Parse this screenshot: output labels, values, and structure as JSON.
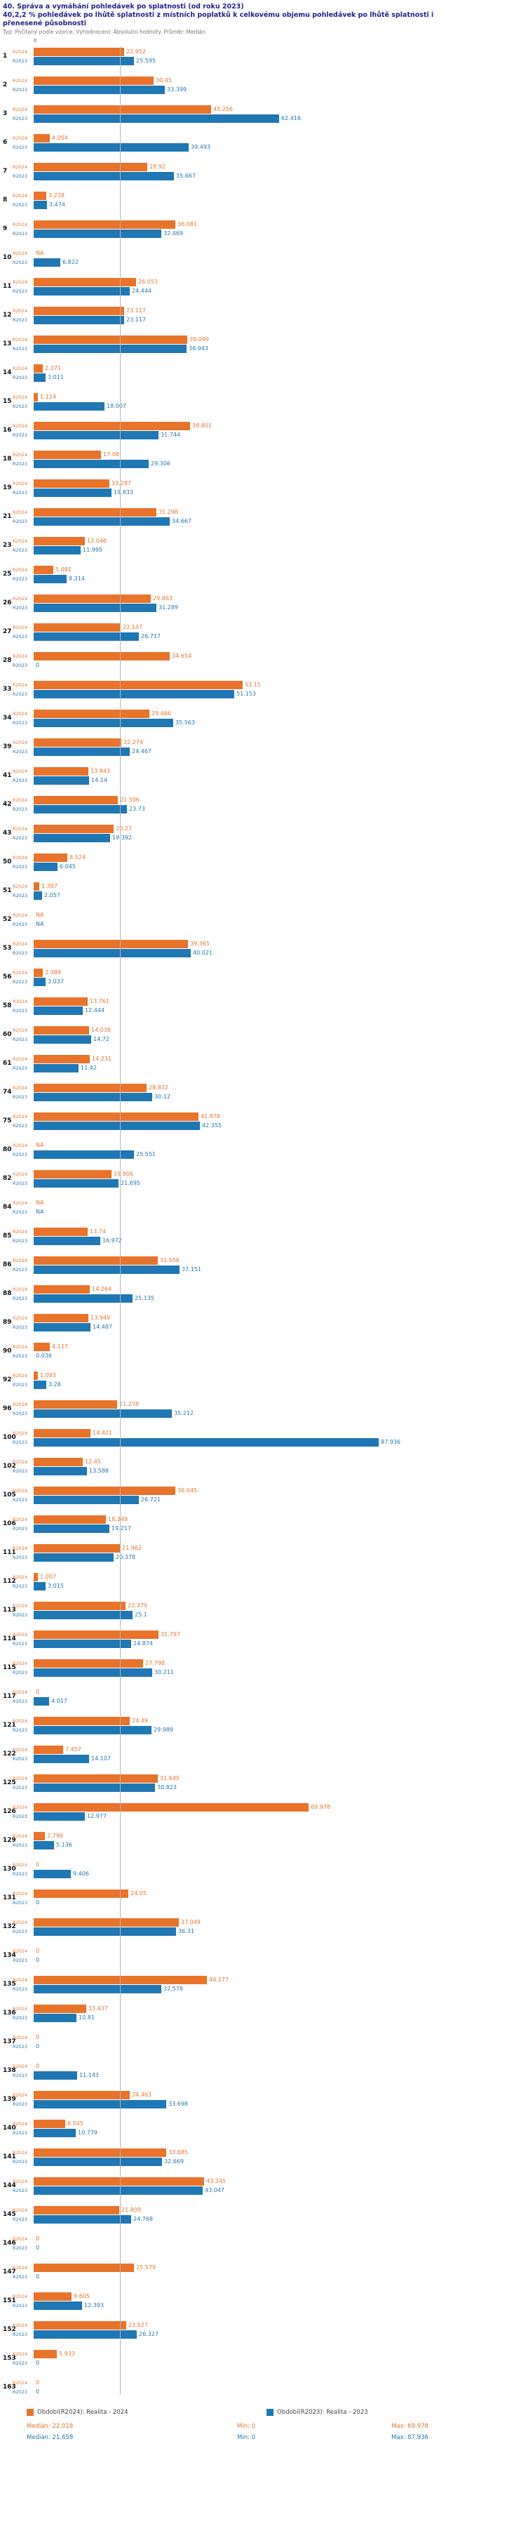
{
  "header": {
    "title": "40. Správa a vymáhání pohledávek po splatnosti (od roku 2023)",
    "subtitle": "40,2,2 % pohledávek po lhůtě splatnosti z místních poplatků k celkovému objemu pohledávek po lhůtě splatnosti i přenesené působnosti",
    "note": "Typ: Počítaný podle vzorce. Vyhodnocení: Absolutní hodnoty. Průměr: Medián"
  },
  "colors": {
    "series_2024": "#e8732a",
    "series_2023": "#1f77b4",
    "median_line": "#b5b5b5",
    "title_text": "#23238c"
  },
  "chart_data": {
    "type": "bar",
    "orientation": "horizontal",
    "title": "40. Správa a vymáhání pohledávek po splatnosti (od roku 2023)",
    "xlabel": "",
    "ylabel": "",
    "x_axis": {
      "zero_label": "0",
      "min": 0,
      "max": 90
    },
    "median_reference_values": [
      22.018,
      21.658
    ],
    "tick_labels": [
      "R2024",
      "R2023"
    ],
    "series_meta": [
      {
        "name": "Období(R2024): Realita - 2024",
        "color": "#e8732a",
        "median": "22.018",
        "min": "0",
        "max": "69.978"
      },
      {
        "name": "Období(R2023): Realita - 2023",
        "color": "#1f77b4",
        "median": "21.658",
        "min": "0",
        "max": "87.936"
      }
    ],
    "rows": [
      {
        "id": "1",
        "values": [
          "22.952",
          "25.595"
        ]
      },
      {
        "id": "2",
        "values": [
          "30.45",
          "33.399"
        ]
      },
      {
        "id": "3",
        "values": [
          "45.256",
          "62.416"
        ]
      },
      {
        "id": "6",
        "values": [
          "4.054",
          "39.493"
        ]
      },
      {
        "id": "7",
        "values": [
          "28.92",
          "35.667"
        ]
      },
      {
        "id": "8",
        "values": [
          "3.238",
          "3.474"
        ]
      },
      {
        "id": "9",
        "values": [
          "36.081",
          "32.469"
        ]
      },
      {
        "id": "10",
        "values": [
          "NA",
          "6.822"
        ]
      },
      {
        "id": "11",
        "values": [
          "26.053",
          "24.444"
        ]
      },
      {
        "id": "12",
        "values": [
          "23.117",
          "23.117"
        ]
      },
      {
        "id": "13",
        "values": [
          "39.099",
          "38.943"
        ]
      },
      {
        "id": "14",
        "values": [
          "2.371",
          "3.011"
        ]
      },
      {
        "id": "15",
        "values": [
          "1.124",
          "18.007"
        ]
      },
      {
        "id": "16",
        "values": [
          "39.801",
          "31.744"
        ]
      },
      {
        "id": "18",
        "values": [
          "17.08",
          "29.306"
        ]
      },
      {
        "id": "19",
        "values": [
          "19.287",
          "19.833"
        ]
      },
      {
        "id": "21",
        "values": [
          "31.298",
          "34.667"
        ]
      },
      {
        "id": "23",
        "values": [
          "13.046",
          "11.995"
        ]
      },
      {
        "id": "25",
        "values": [
          "5.081",
          "8.314"
        ]
      },
      {
        "id": "26",
        "values": [
          "29.863",
          "31.289"
        ]
      },
      {
        "id": "27",
        "values": [
          "22.147",
          "26.717"
        ]
      },
      {
        "id": "28",
        "values": [
          "34.654",
          "0"
        ]
      },
      {
        "id": "33",
        "values": [
          "53.15",
          "51.153"
        ]
      },
      {
        "id": "34",
        "values": [
          "29.466",
          "35.563"
        ]
      },
      {
        "id": "39",
        "values": [
          "22.274",
          "24.467"
        ]
      },
      {
        "id": "41",
        "values": [
          "13.843",
          "14.14"
        ]
      },
      {
        "id": "42",
        "values": [
          "21.506",
          "23.73"
        ]
      },
      {
        "id": "43",
        "values": [
          "20.27",
          "19.392"
        ]
      },
      {
        "id": "50",
        "values": [
          "8.524",
          "6.045"
        ]
      },
      {
        "id": "51",
        "values": [
          "1.397",
          "2.057"
        ]
      },
      {
        "id": "52",
        "values": [
          "NA",
          "NA"
        ]
      },
      {
        "id": "53",
        "values": [
          "39.365",
          "40.021"
        ]
      },
      {
        "id": "56",
        "values": [
          "2.389",
          "3.037"
        ]
      },
      {
        "id": "58",
        "values": [
          "13.761",
          "12.444"
        ]
      },
      {
        "id": "60",
        "values": [
          "14.038",
          "14.72"
        ]
      },
      {
        "id": "61",
        "values": [
          "14.231",
          "11.42"
        ]
      },
      {
        "id": "74",
        "values": [
          "28.832",
          "30.12"
        ]
      },
      {
        "id": "75",
        "values": [
          "41.879",
          "42.355"
        ]
      },
      {
        "id": "80",
        "values": [
          "NA",
          "25.551"
        ]
      },
      {
        "id": "82",
        "values": [
          "19.906",
          "21.695"
        ]
      },
      {
        "id": "84",
        "values": [
          "NA",
          "NA"
        ]
      },
      {
        "id": "85",
        "values": [
          "13.74",
          "16.972"
        ]
      },
      {
        "id": "86",
        "values": [
          "31.556",
          "37.151"
        ]
      },
      {
        "id": "88",
        "values": [
          "14.264",
          "25.135"
        ]
      },
      {
        "id": "89",
        "values": [
          "13.949",
          "14.487"
        ]
      },
      {
        "id": "90",
        "values": [
          "4.117",
          "0.036"
        ]
      },
      {
        "id": "92",
        "values": [
          "1.093",
          "3.28"
        ]
      },
      {
        "id": "96",
        "values": [
          "21.278",
          "35.212"
        ]
      },
      {
        "id": "100",
        "values": [
          "14.421",
          "87.936"
        ]
      },
      {
        "id": "102",
        "values": [
          "12.45",
          "13.588"
        ]
      },
      {
        "id": "105",
        "values": [
          "36.045",
          "26.721"
        ]
      },
      {
        "id": "106",
        "values": [
          "18.349",
          "19.217"
        ]
      },
      {
        "id": "111",
        "values": [
          "21.962",
          "20.378"
        ]
      },
      {
        "id": "112",
        "values": [
          "1.007",
          "3.015"
        ]
      },
      {
        "id": "113",
        "values": [
          "23.379",
          "25.1"
        ]
      },
      {
        "id": "114",
        "values": [
          "31.797",
          "24.874"
        ]
      },
      {
        "id": "115",
        "values": [
          "27.798",
          "30.211"
        ]
      },
      {
        "id": "117",
        "values": [
          "0",
          "4.017"
        ]
      },
      {
        "id": "121",
        "values": [
          "24.49",
          "29.989"
        ]
      },
      {
        "id": "122",
        "values": [
          "7.457",
          "14.107"
        ]
      },
      {
        "id": "125",
        "values": [
          "31.645",
          "30.823"
        ]
      },
      {
        "id": "126",
        "values": [
          "69.978",
          "12.977"
        ]
      },
      {
        "id": "129",
        "values": [
          "2.796",
          "5.136"
        ]
      },
      {
        "id": "130",
        "values": [
          "0",
          "9.406"
        ]
      },
      {
        "id": "131",
        "values": [
          "24.05",
          "0"
        ]
      },
      {
        "id": "132",
        "values": [
          "37.049",
          "36.31"
        ]
      },
      {
        "id": "134",
        "values": [
          "0",
          "0"
        ]
      },
      {
        "id": "135",
        "values": [
          "44.177",
          "32.578"
        ]
      },
      {
        "id": "136",
        "values": [
          "13.437",
          "10.81"
        ]
      },
      {
        "id": "137",
        "values": [
          "0",
          "0"
        ]
      },
      {
        "id": "138",
        "values": [
          "0",
          "11.143"
        ]
      },
      {
        "id": "139",
        "values": [
          "24.463",
          "33.698"
        ]
      },
      {
        "id": "140",
        "values": [
          "8.045",
          "10.779"
        ]
      },
      {
        "id": "141",
        "values": [
          "33.685",
          "32.669"
        ]
      },
      {
        "id": "144",
        "values": [
          "43.345",
          "43.047"
        ]
      },
      {
        "id": "145",
        "values": [
          "21.809",
          "24.768"
        ]
      },
      {
        "id": "146",
        "values": [
          "0",
          "0"
        ]
      },
      {
        "id": "147",
        "values": [
          "25.579",
          "0"
        ]
      },
      {
        "id": "151",
        "values": [
          "9.605",
          "12.393"
        ]
      },
      {
        "id": "152",
        "values": [
          "23.527",
          "26.327"
        ]
      },
      {
        "id": "153",
        "values": [
          "5.933",
          "0"
        ]
      },
      {
        "id": "163",
        "values": [
          "0",
          "0"
        ]
      }
    ]
  },
  "legend": {
    "items": [
      {
        "label": "Období(R2024): Realita - 2024"
      },
      {
        "label": "Období(R2023): Realita - 2023"
      }
    ],
    "stats": [
      {
        "median": "Medián: 22.018",
        "min": "Min: 0",
        "max": "Max: 69.978"
      },
      {
        "median": "Medián: 21.658",
        "min": "Min: 0",
        "max": "Max: 87.936"
      }
    ]
  }
}
